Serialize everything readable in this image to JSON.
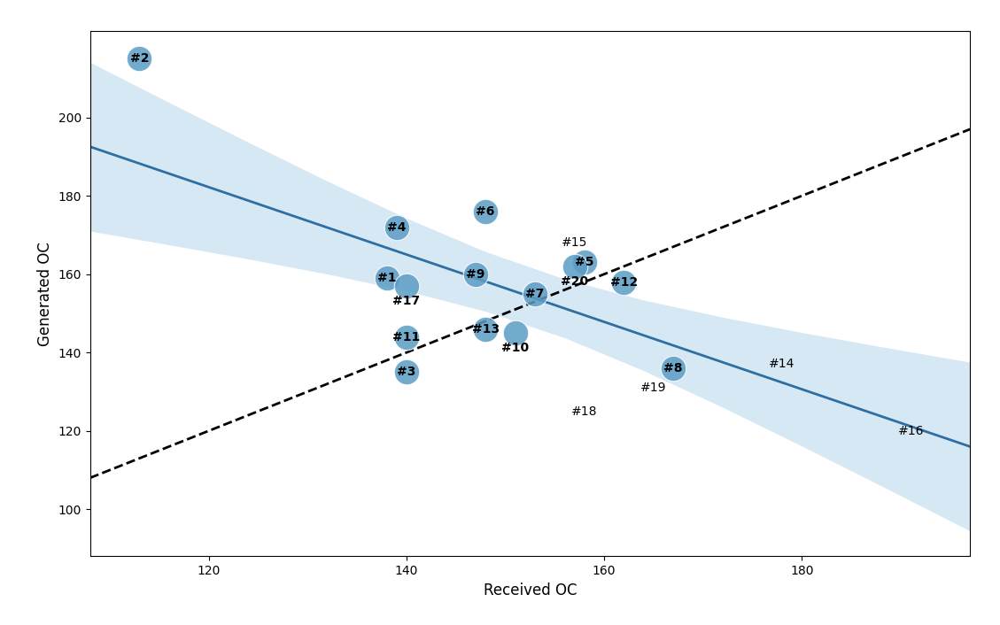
{
  "chart_data": {
    "type": "scatter",
    "xlabel": "Received OC",
    "ylabel": "Generated OC",
    "xlim": [
      108,
      197
    ],
    "ylim": [
      88,
      222
    ],
    "xticks": [
      120,
      140,
      160,
      180
    ],
    "yticks": [
      100,
      120,
      140,
      160,
      180,
      200
    ],
    "grid": false,
    "series": [
      {
        "type": "band",
        "color": "#c5dff0",
        "x": [
          108,
          116,
          124,
          132,
          140,
          148,
          156,
          164,
          172,
          180,
          188,
          197
        ],
        "lower": [
          171.0,
          167.5,
          163.88,
          160.04,
          155.74,
          150.53,
          143.76,
          135.38,
          125.99,
          116.12,
          106.0,
          94.46
        ],
        "upper": [
          214.08,
          203.82,
          193.68,
          183.76,
          174.3,
          165.75,
          158.76,
          153.39,
          149.01,
          145.12,
          141.48,
          137.54
        ]
      },
      {
        "type": "line",
        "color": "black",
        "line_style": "dashed",
        "x": [
          108,
          197
        ],
        "values": [
          108,
          197
        ]
      },
      {
        "type": "line",
        "color": "#2e6fa3",
        "line_style": "solid",
        "x": [
          108,
          197
        ],
        "values": [
          192.54,
          116.0
        ]
      },
      {
        "type": "scatter",
        "marker": "o",
        "color": "#5b9cc4",
        "x": [
          113,
          139,
          138,
          140,
          148,
          147,
          140,
          140,
          148,
          151,
          153,
          158,
          157,
          162,
          167
        ],
        "values": [
          215,
          172,
          159,
          157,
          176,
          160,
          144,
          135,
          146,
          145,
          155,
          163,
          162,
          158,
          136
        ],
        "labels": [
          "#2",
          "#4",
          "#1",
          "#17",
          "#6",
          "#9",
          "#11",
          "#3",
          "#13",
          "#10",
          "#7",
          "#5",
          "#20",
          "#12",
          "#8"
        ]
      },
      {
        "type": "scatter",
        "marker": "none",
        "x": [
          157,
          165,
          158,
          178,
          191
        ],
        "values": [
          168,
          131,
          125,
          137,
          120
        ],
        "labels": [
          "#15",
          "#19",
          "#18",
          "#14",
          "#16"
        ]
      }
    ]
  }
}
